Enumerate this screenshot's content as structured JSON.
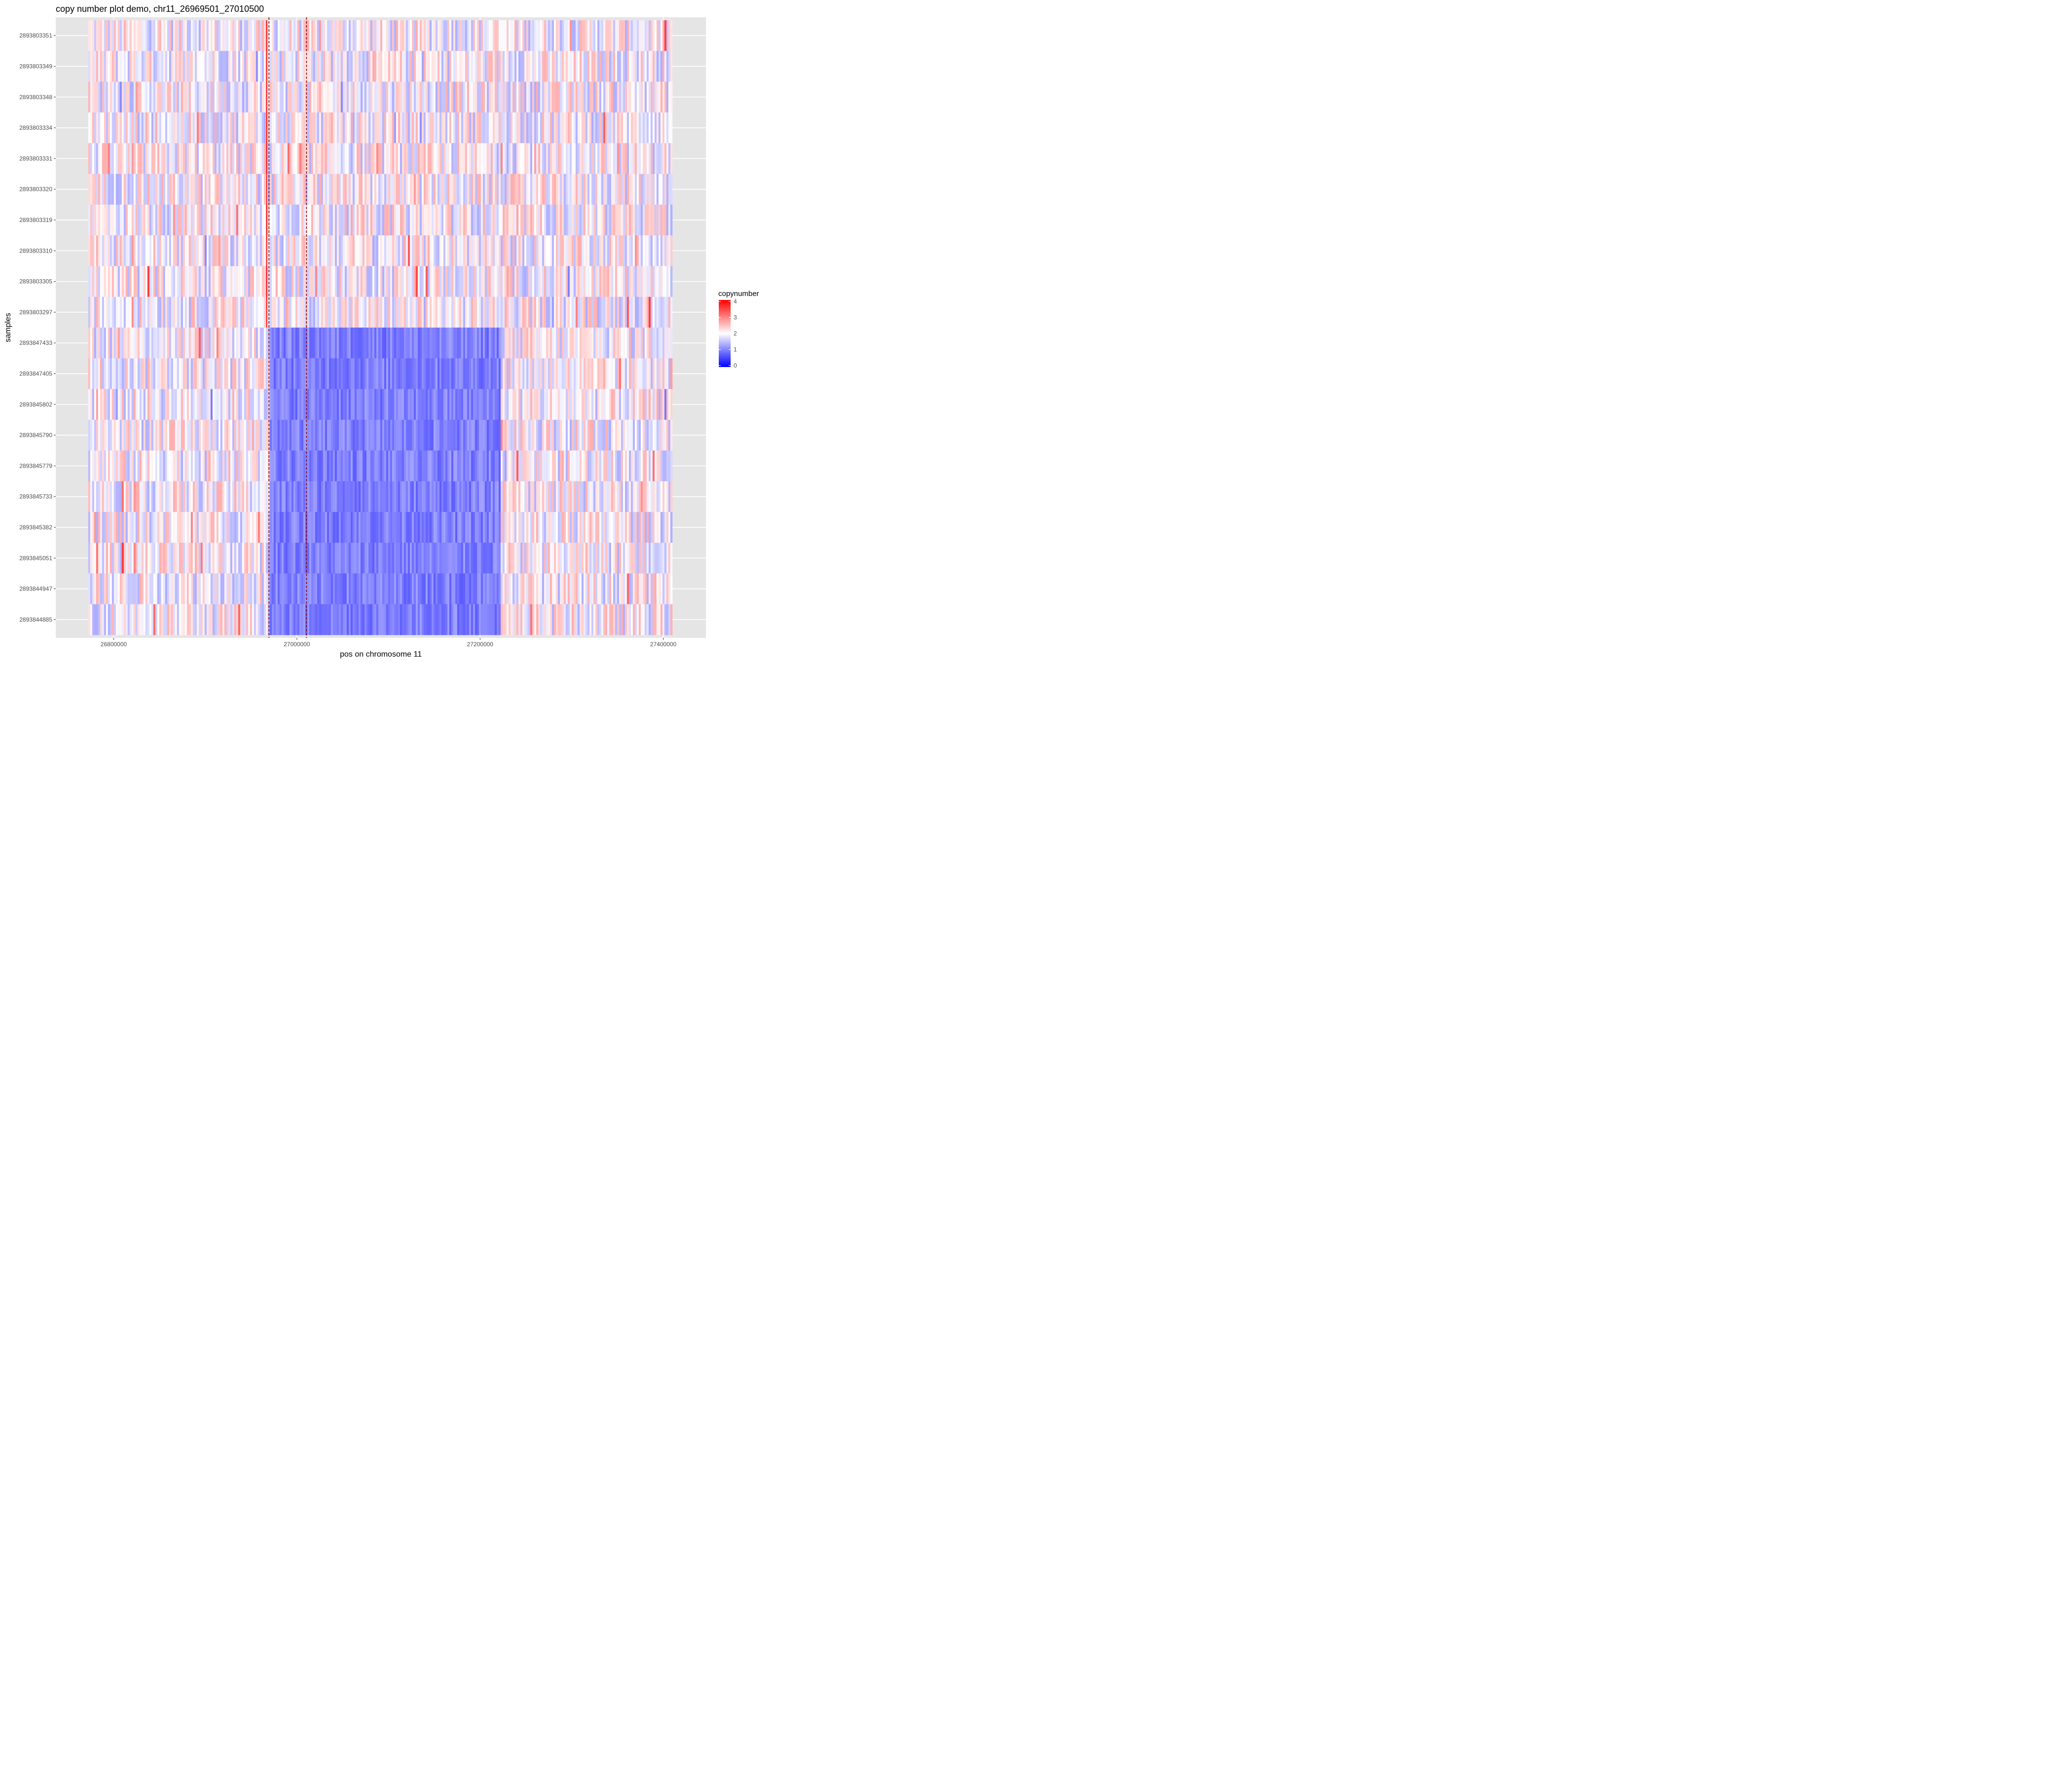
{
  "chart_data": {
    "type": "heatmap",
    "title": "copy number plot demo, chr11_26969501_27010500",
    "xlabel": "pos on chromosome 11",
    "ylabel": "samples",
    "x_range": [
      26770000,
      27420000
    ],
    "x_ticks": [
      26800000,
      27000000,
      27200000,
      27400000
    ],
    "x_tick_labels": [
      "26800000",
      "27000000",
      "27200000",
      "27400000"
    ],
    "samples": [
      "2893803351",
      "2893803349",
      "2893803348",
      "2893803334",
      "2893803331",
      "2893803320",
      "2893803319",
      "2893803310",
      "2893803305",
      "2893803297",
      "2893847433",
      "2893847405",
      "2893845802",
      "2893845790",
      "2893845779",
      "2893845733",
      "2893845382",
      "2893845051",
      "2893844947",
      "2893844885"
    ],
    "vlines": [
      {
        "x": 26969501,
        "linetype": "dashed",
        "color": "#8b0000"
      },
      {
        "x": 27010500,
        "linetype": "dashed",
        "color": "#8b0000"
      }
    ],
    "highlight_line": {
      "x": 26967000,
      "color": "#ff0000",
      "samples_from": "2893803351",
      "samples_to": "2893803297"
    },
    "deletion_region": {
      "start": 26969501,
      "end": 27222000,
      "samples": [
        "2893847433",
        "2893847405",
        "2893845802",
        "2893845790",
        "2893845779",
        "2893845733",
        "2893845382",
        "2893845051",
        "2893844947",
        "2893844885"
      ],
      "copynumber": 1
    },
    "background_copynumber": 2,
    "legend": {
      "title": "copynumber",
      "position": "right",
      "ticks": [
        0,
        1,
        2,
        3,
        4
      ],
      "tick_labels": [
        "0",
        "1",
        "2",
        "3",
        "4"
      ],
      "colors": {
        "low": "#0000ff",
        "mid": "#ffffff",
        "high": "#ff0000"
      }
    },
    "panel_background": "#e5e5e5",
    "grid": true
  }
}
